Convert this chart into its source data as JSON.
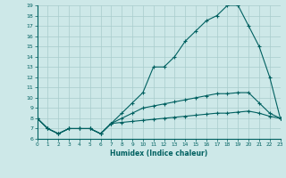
{
  "xlabel": "Humidex (Indice chaleur)",
  "xlim": [
    0,
    23
  ],
  "ylim": [
    6,
    19
  ],
  "xticks": [
    0,
    1,
    2,
    3,
    4,
    5,
    6,
    7,
    8,
    9,
    10,
    11,
    12,
    13,
    14,
    15,
    16,
    17,
    18,
    19,
    20,
    21,
    22,
    23
  ],
  "yticks": [
    6,
    7,
    8,
    9,
    10,
    11,
    12,
    13,
    14,
    15,
    16,
    17,
    18,
    19
  ],
  "bg_color": "#cde8e8",
  "line_color": "#006060",
  "grid_color": "#a8cccc",
  "line1_x": [
    0,
    1,
    2,
    3,
    4,
    5,
    6,
    7,
    8,
    9,
    10,
    11,
    12,
    13,
    14,
    15,
    16,
    17,
    18,
    19,
    20,
    21,
    22,
    23
  ],
  "line1_y": [
    8.0,
    7.0,
    6.5,
    7.0,
    7.0,
    7.0,
    6.5,
    7.5,
    8.5,
    9.5,
    10.5,
    13.0,
    13.0,
    14.0,
    15.5,
    16.5,
    17.5,
    18.0,
    19.0,
    19.0,
    17.0,
    15.0,
    12.0,
    8.0
  ],
  "line2_x": [
    0,
    1,
    2,
    3,
    4,
    5,
    6,
    7,
    8,
    9,
    10,
    11,
    12,
    13,
    14,
    15,
    16,
    17,
    18,
    19,
    20,
    21,
    22,
    23
  ],
  "line2_y": [
    8.0,
    7.0,
    6.5,
    7.0,
    7.0,
    7.0,
    6.5,
    7.5,
    8.0,
    8.5,
    9.0,
    9.2,
    9.4,
    9.6,
    9.8,
    10.0,
    10.2,
    10.4,
    10.4,
    10.5,
    10.5,
    9.5,
    8.5,
    8.0
  ],
  "line3_x": [
    0,
    1,
    2,
    3,
    4,
    5,
    6,
    7,
    8,
    9,
    10,
    11,
    12,
    13,
    14,
    15,
    16,
    17,
    18,
    19,
    20,
    21,
    22,
    23
  ],
  "line3_y": [
    8.0,
    7.0,
    6.5,
    7.0,
    7.0,
    7.0,
    6.5,
    7.5,
    7.6,
    7.7,
    7.8,
    7.9,
    8.0,
    8.1,
    8.2,
    8.3,
    8.4,
    8.5,
    8.5,
    8.6,
    8.7,
    8.5,
    8.2,
    8.0
  ]
}
